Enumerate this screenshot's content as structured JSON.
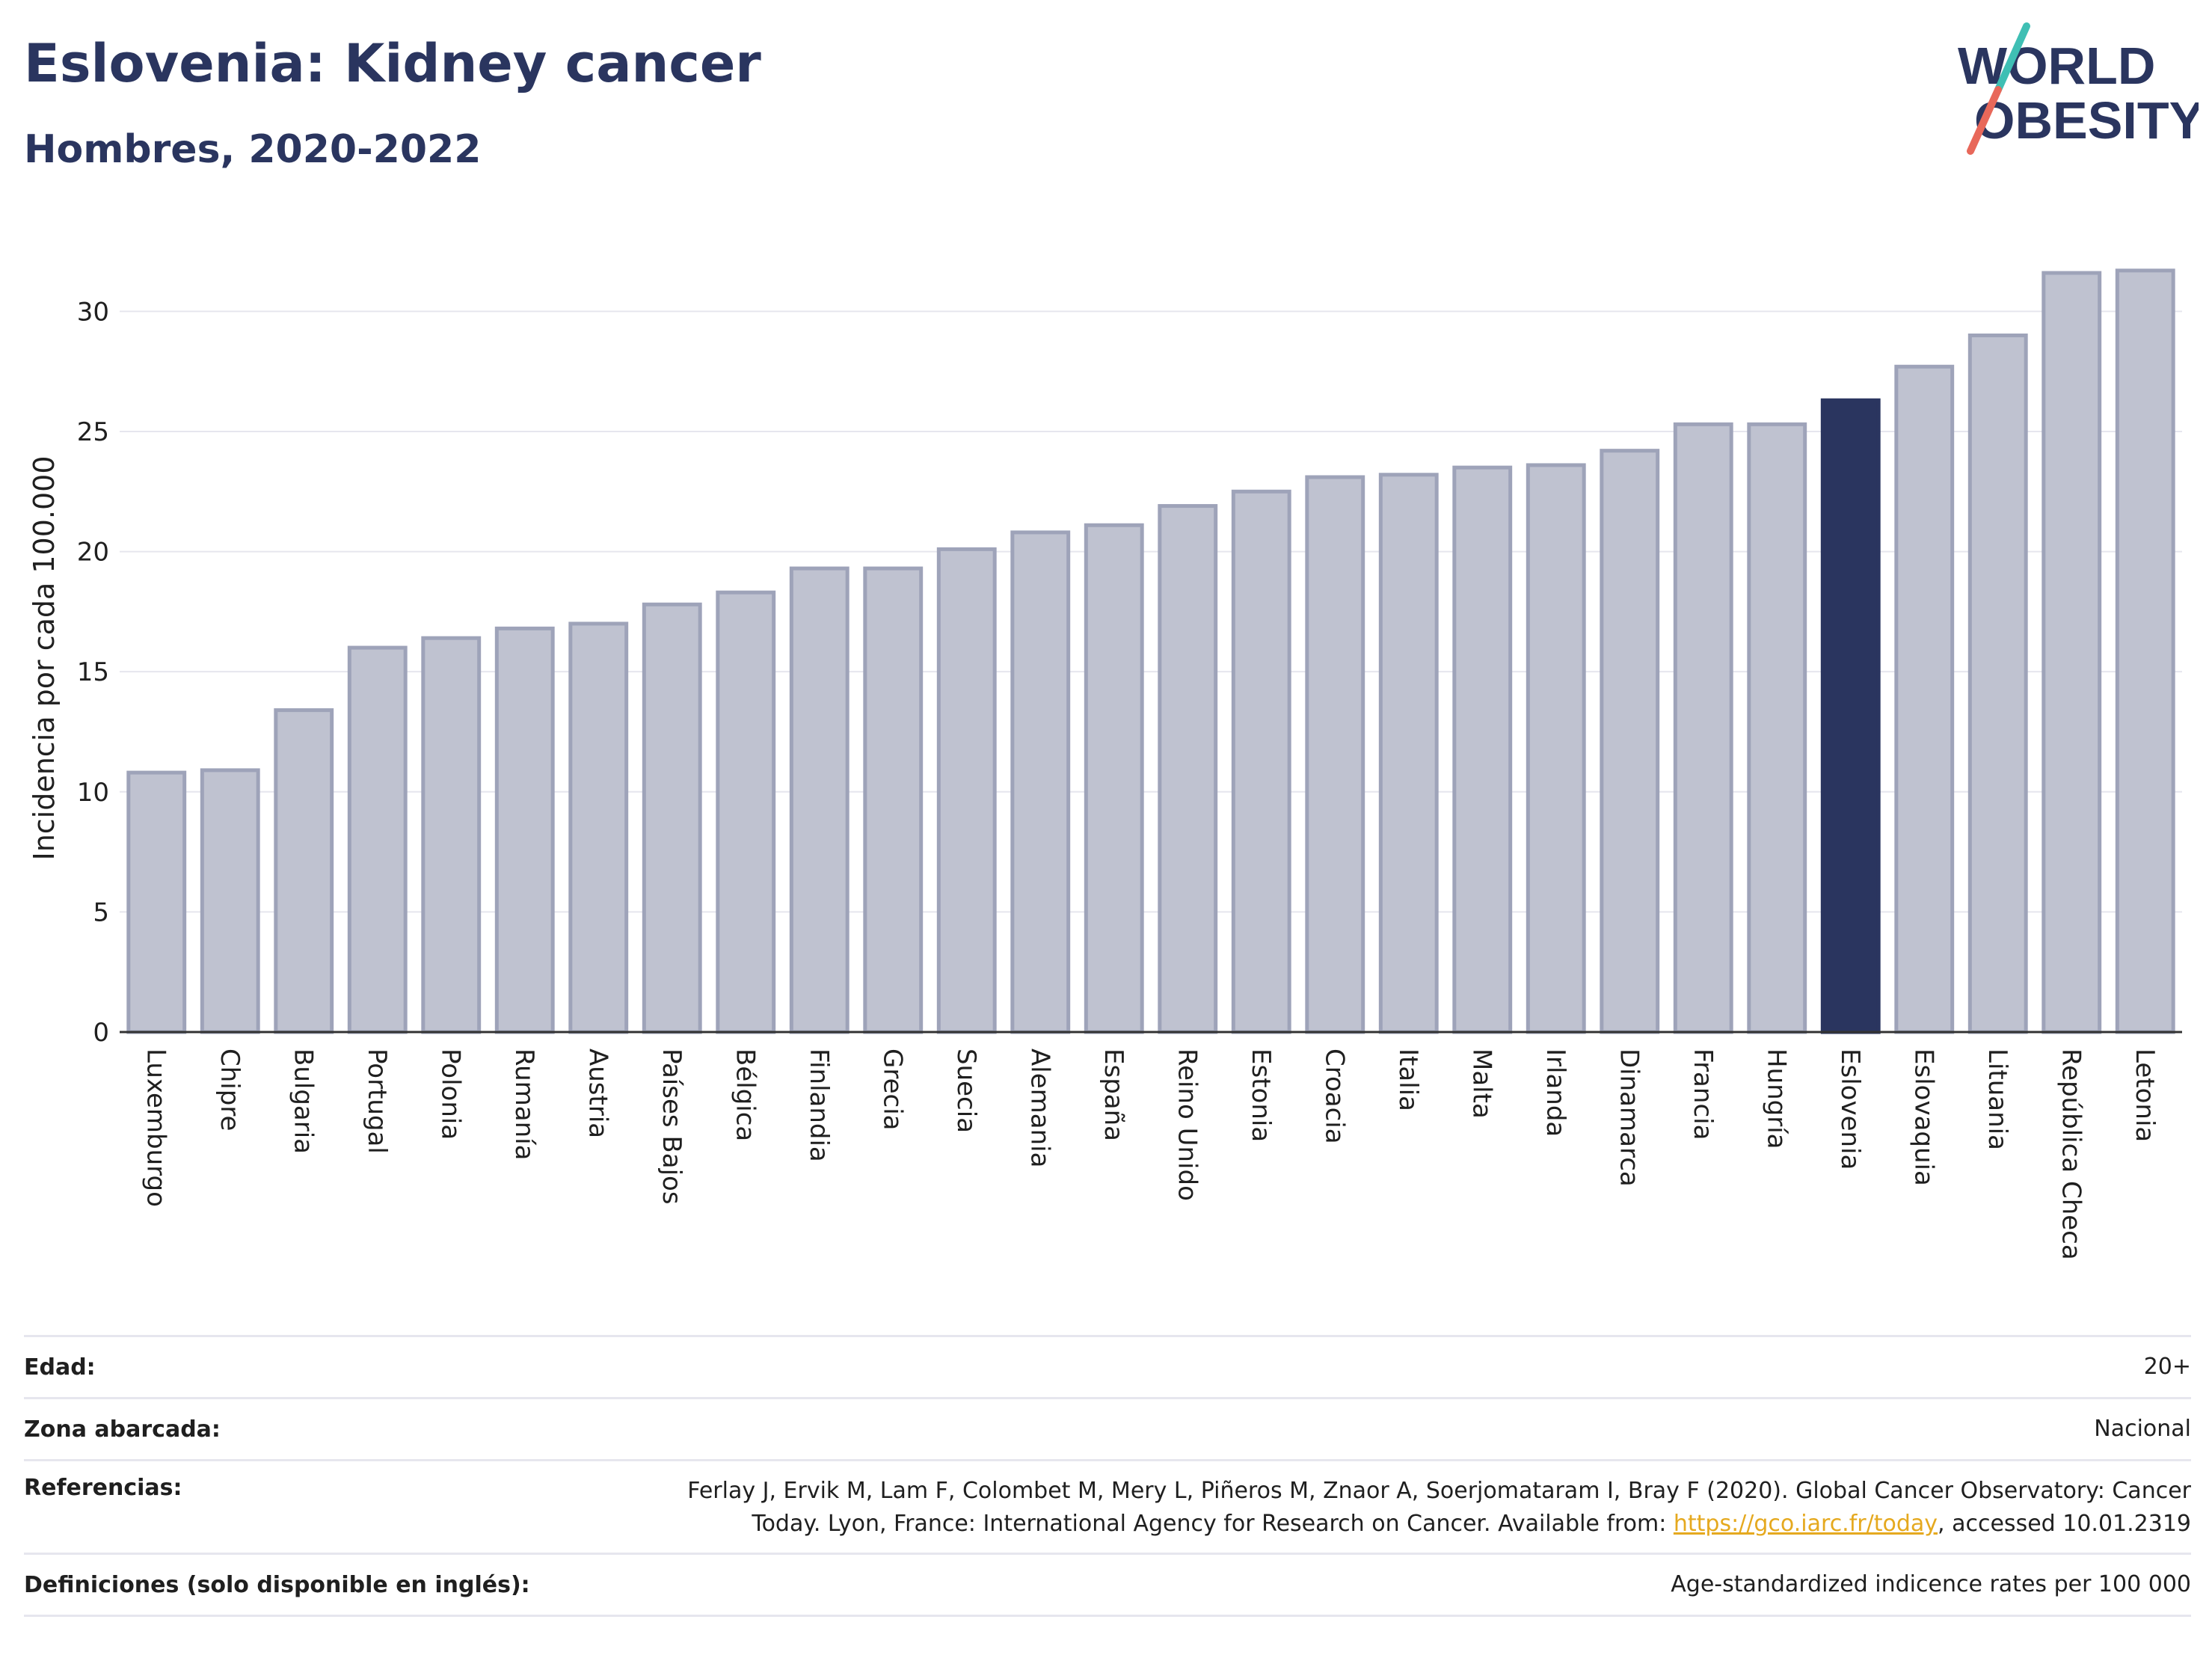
{
  "header": {
    "title": "Eslovenia: Kidney cancer",
    "subtitle": "Hombres, 2020-2022"
  },
  "logo": {
    "line1": "WORLD",
    "line2": "OBESITY",
    "colors": {
      "text": "#2a355f",
      "slash_red": "#e8685a",
      "slash_teal": "#3fbfb4"
    }
  },
  "colors": {
    "bar": "#bfc2d0",
    "bar_border": "#9ea3b9",
    "highlight": "#2a355f",
    "grid": "#e6e6ee",
    "axis": "#333333"
  },
  "chart_data": {
    "type": "bar",
    "ylabel": "Incidencia por cada 100.000",
    "ylim": [
      0,
      33
    ],
    "yticks": [
      0,
      5,
      10,
      15,
      20,
      25,
      30
    ],
    "highlight": "Eslovenia",
    "grid": true,
    "categories": [
      "Luxemburgo",
      "Chipre",
      "Bulgaria",
      "Portugal",
      "Polonia",
      "Rumanía",
      "Austria",
      "Países Bajos",
      "Bélgica",
      "Finlandia",
      "Grecia",
      "Suecia",
      "Alemania",
      "España",
      "Reino Unido",
      "Estonia",
      "Croacia",
      "Italia",
      "Malta",
      "Irlanda",
      "Dinamarca",
      "Francia",
      "Hungría",
      "Eslovenia",
      "Eslovaquia",
      "Lituania",
      "República Checa",
      "Letonia"
    ],
    "values": [
      10.8,
      10.9,
      13.4,
      16.0,
      16.4,
      16.8,
      17.0,
      17.8,
      18.3,
      19.3,
      19.3,
      20.1,
      20.8,
      21.1,
      21.9,
      22.5,
      23.1,
      23.2,
      23.5,
      23.6,
      24.2,
      25.3,
      25.3,
      26.3,
      27.7,
      29.0,
      31.6,
      31.7
    ]
  },
  "footer": {
    "rows": [
      {
        "label": "Edad:",
        "value": "20+"
      },
      {
        "label": "Zona abarcada:",
        "value": "Nacional"
      },
      {
        "label": "Referencias:",
        "value_line1": "Ferlay J, Ervik M, Lam F, Colombet M, Mery L, Piñeros M, Znaor A, Soerjomataram I, Bray F (2020). Global Cancer Observatory: Cancer",
        "value_pre": "Today. Lyon, France: International Agency for Research on Cancer. Available from: ",
        "link": "https://gco.iarc.fr/today",
        "value_post": ", accessed 10.01.2319"
      },
      {
        "label": "Definiciones (solo disponible en inglés):",
        "value": "Age-standardized indicence rates per 100 000"
      }
    ]
  }
}
